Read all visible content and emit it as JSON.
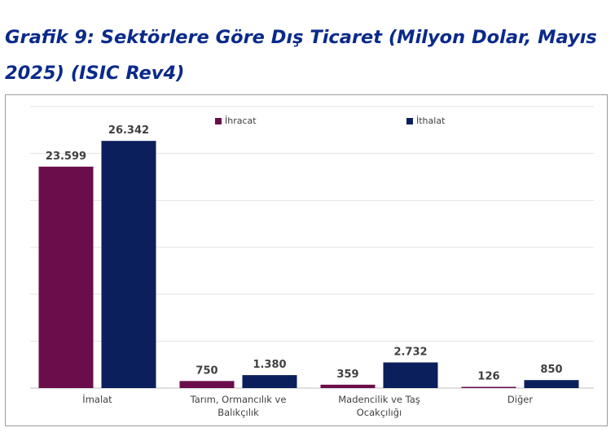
{
  "title": "Grafik 9: Sektörlere Göre Dış Ticaret (Milyon Dolar, Mayıs 2025) (ISIC Rev4)",
  "colors": {
    "title": "#0a2a8a",
    "ihracat": "#6b0d4a",
    "ithalat": "#0b1f5c",
    "grid": "#e3e3e3",
    "axis": "#bfbfbf",
    "text": "#404040"
  },
  "chart_data": {
    "type": "bar",
    "title": "Grafik 9: Sektörlere Göre Dış Ticaret (Milyon Dolar, Mayıs 2025) (ISIC Rev4)",
    "categories": [
      [
        "İmalat"
      ],
      [
        "Tarım, Ormancılık ve",
        "Balıkçılık"
      ],
      [
        "Madencilik ve Taş",
        "Ocakçılığı"
      ],
      [
        "Diğer"
      ]
    ],
    "series": [
      {
        "name": "İhracat",
        "values": [
          23599,
          750,
          359,
          126
        ],
        "labels": [
          "23.599",
          "750",
          "359",
          "126"
        ]
      },
      {
        "name": "İthalat",
        "values": [
          26342,
          1380,
          2732,
          850
        ],
        "labels": [
          "26.342",
          "1.380",
          "2.732",
          "850"
        ]
      }
    ],
    "ylim": [
      0,
      30000
    ],
    "gridlines": [
      0,
      5000,
      10000,
      15000,
      20000,
      25000,
      30000
    ],
    "grid": true,
    "y_tick_labels_shown": false,
    "legend": "top-center",
    "xlabel": "",
    "ylabel": ""
  }
}
